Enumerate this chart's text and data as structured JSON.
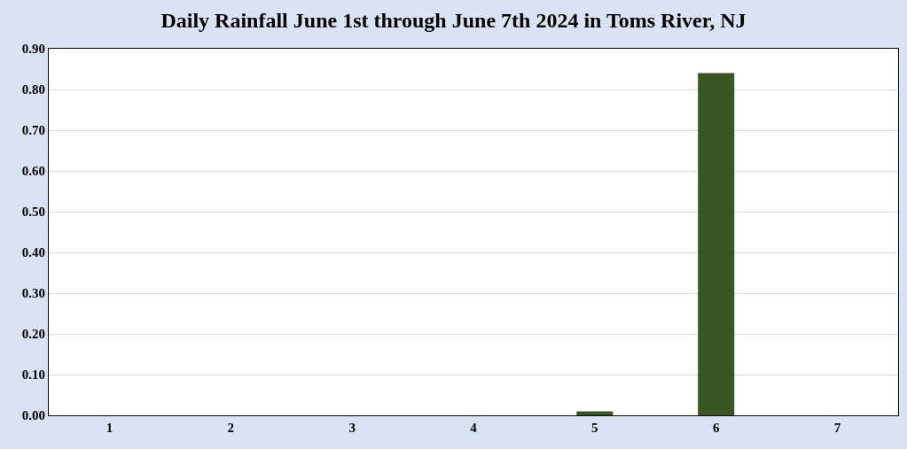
{
  "chart_data": {
    "type": "bar",
    "title": "Daily Rainfall June 1st through June 7th 2024 in Toms River, NJ",
    "categories": [
      "1",
      "2",
      "3",
      "4",
      "5",
      "6",
      "7"
    ],
    "values": [
      0,
      0,
      0,
      0,
      0.01,
      0.84,
      0
    ],
    "color": "#375623",
    "ylim": [
      0,
      0.9
    ],
    "yticks": [
      {
        "value": 0,
        "label": "0.00"
      },
      {
        "value": 0.1,
        "label": "0.10"
      },
      {
        "value": 0.2,
        "label": "0.20"
      },
      {
        "value": 0.3,
        "label": "0.30"
      },
      {
        "value": 0.4,
        "label": "0.40"
      },
      {
        "value": 0.5,
        "label": "0.50"
      },
      {
        "value": 0.6,
        "label": "0.60"
      },
      {
        "value": 0.7,
        "label": "0.70"
      },
      {
        "value": 0.8,
        "label": "0.80"
      },
      {
        "value": 0.9,
        "label": "0.90"
      }
    ],
    "grid": "y"
  }
}
